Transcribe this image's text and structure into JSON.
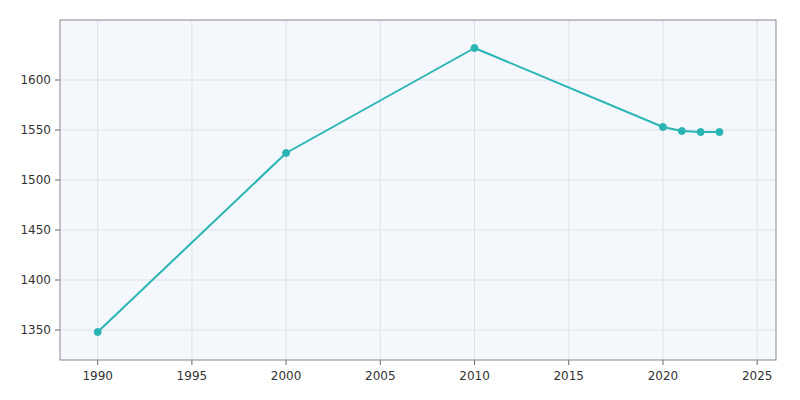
{
  "chart_data": {
    "type": "line",
    "x": [
      1990,
      2000,
      2010,
      2020,
      2021,
      2022,
      2023
    ],
    "values": [
      1348,
      1527,
      1632,
      1553,
      1549,
      1548,
      1548
    ],
    "color": "#2ab5b5",
    "marker": "circle",
    "xlim": [
      1988,
      2026
    ],
    "ylim": [
      1320,
      1660
    ],
    "xticks": [
      1990,
      1995,
      2000,
      2005,
      2010,
      2015,
      2020,
      2025
    ],
    "yticks": [
      1350,
      1400,
      1450,
      1500,
      1550,
      1600
    ],
    "grid": true
  }
}
